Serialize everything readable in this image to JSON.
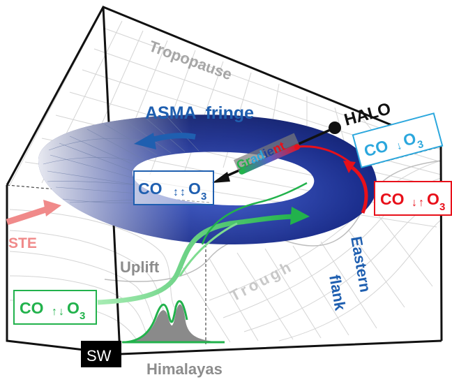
{
  "labels": {
    "tropopause": "Tropopause",
    "asma_fringe": "ASMA  fringe",
    "halo": "HALO",
    "gradient": "Gradient",
    "ste": "STE",
    "uplift": "Uplift",
    "trough": "Trough",
    "eastern": "Eastern",
    "flank": "flank",
    "sw": "SW",
    "himalayas": "Himalayas"
  },
  "correlation_boxes": {
    "center": {
      "co": "CO",
      "o3": "O",
      "sub": "3"
    },
    "top_right": {
      "co": "CO",
      "o3": "O",
      "sub": "3"
    },
    "right": {
      "co": "CO",
      "o3": "O",
      "sub": "3"
    },
    "left": {
      "co": "CO",
      "o3": "O",
      "sub": "3"
    }
  },
  "colors": {
    "asma_blue": "#1f5fb0",
    "torus_dark": "#1a2d8c",
    "red": "#e8101a",
    "green": "#22b24c",
    "cyan_box": "#2ba7dd",
    "grey_text": "#a6a6a6",
    "ste_pink": "#f08a8a"
  }
}
